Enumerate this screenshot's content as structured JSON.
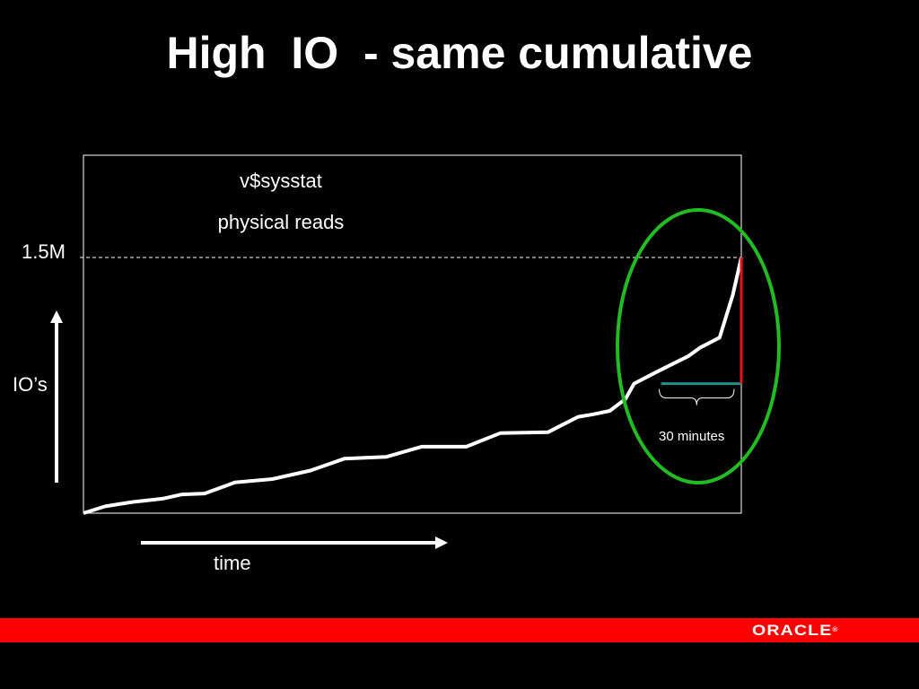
{
  "slide": {
    "title": "High  IO  - same cumulative",
    "brand": "ORACLE"
  },
  "colors": {
    "background": "#000000",
    "line": "#ffffff",
    "frame": "#ffffff",
    "highlight_ellipse": "#22bb22",
    "delta_vertical": "#e8141c",
    "delta_horizontal": "#22908a",
    "footer_bar": "#ff0000"
  },
  "chart_data": {
    "type": "line",
    "title": "v$sysstat",
    "subtitle": "physical reads",
    "xlabel": "time",
    "ylabel": "IO’s",
    "y_reference_label": "1.5M",
    "y_reference_value": 1.5,
    "y_units": "millions",
    "ylim": [
      0,
      2.1
    ],
    "xlim": [
      0,
      100
    ],
    "grid": false,
    "legend": "none",
    "series": [
      {
        "x": [
          0,
          3.3,
          7.4,
          12,
          15,
          18.4,
          23,
          28.7,
          34.5,
          39.7,
          46,
          51.4,
          58.2,
          63.4,
          70.6,
          75.2,
          77.5,
          80,
          82.4,
          83.7,
          86.7,
          89.8,
          91.9,
          93.7,
          96.7,
          98.7,
          100
        ],
        "y": [
          0.0,
          0.04,
          0.065,
          0.085,
          0.11,
          0.115,
          0.18,
          0.2,
          0.25,
          0.32,
          0.33,
          0.39,
          0.39,
          0.47,
          0.475,
          0.565,
          0.58,
          0.6,
          0.67,
          0.76,
          0.82,
          0.88,
          0.92,
          0.97,
          1.03,
          1.28,
          1.5
        ]
      }
    ],
    "annotation": {
      "label": "30 minutes",
      "x_start": 87.8,
      "x_end": 100,
      "y_low": 0.76,
      "y_high": 1.5
    }
  }
}
